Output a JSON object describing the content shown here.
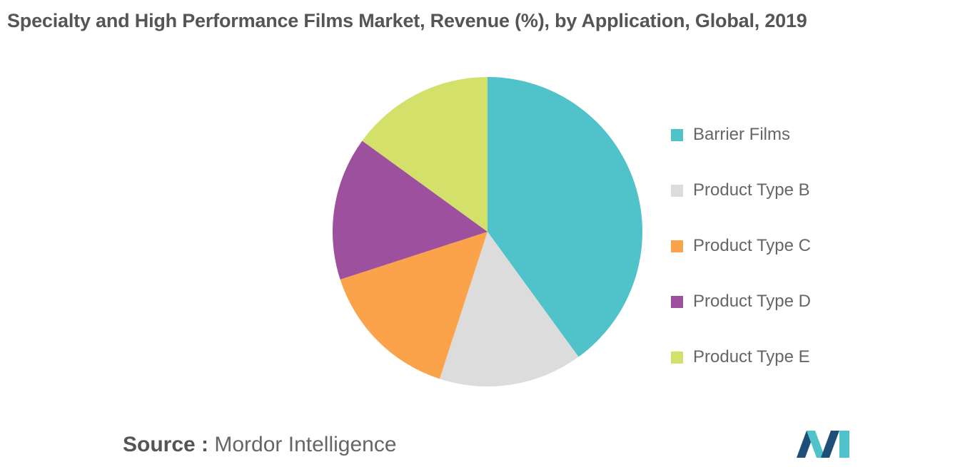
{
  "header": {
    "title": "Specialty and High Performance Films Market, Revenue (%), by Application, Global, 2019"
  },
  "footer": {
    "source_label": "Source :",
    "source_value": "Mordor Intelligence"
  },
  "logo": {
    "icon": "mordor-intelligence-logo-icon",
    "colors": [
      "#1f4e79",
      "#4fc3c9"
    ]
  },
  "chart_data": {
    "type": "pie",
    "title": "Specialty and High Performance Films Market, Revenue (%), by Application, Global, 2019",
    "start_angle_deg": 0,
    "direction": "clockwise",
    "legend_position": "right",
    "slices": [
      {
        "label": "Barrier Films",
        "value": 40,
        "color": "#4fc3c9"
      },
      {
        "label": "Product Type B",
        "value": 15,
        "color": "#dcdcdc"
      },
      {
        "label": "Product Type C",
        "value": 15,
        "color": "#fba34a"
      },
      {
        "label": "Product Type D",
        "value": 15,
        "color": "#9c509e"
      },
      {
        "label": "Product Type E",
        "value": 15,
        "color": "#d3e06a"
      }
    ]
  }
}
